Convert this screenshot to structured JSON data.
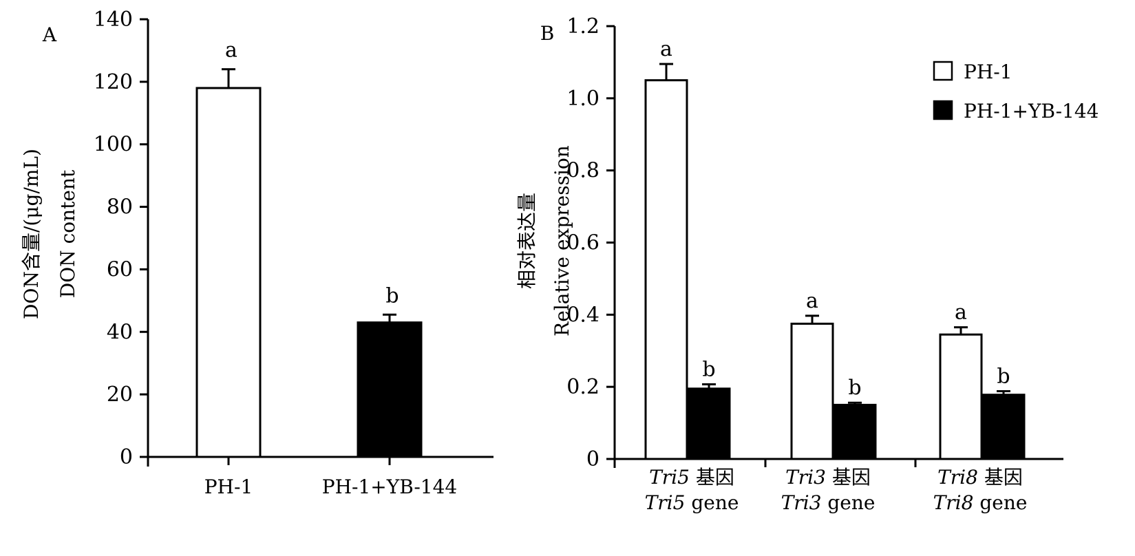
{
  "chart_data": [
    {
      "type": "bar",
      "panel_label": "A",
      "ylabel_zh": "DON含量/(μg/mL)",
      "ylabel_en": "DON content",
      "ylim": [
        0,
        140
      ],
      "yticks": [
        0,
        20,
        40,
        60,
        80,
        100,
        120,
        140
      ],
      "categories": [
        "PH-1",
        "PH-1+YB-144"
      ],
      "values": [
        118,
        43
      ],
      "errors": [
        6,
        2.5
      ],
      "significance": [
        "a",
        "b"
      ],
      "colors": [
        "#ffffff",
        "#000000"
      ]
    },
    {
      "type": "bar",
      "panel_label": "B",
      "ylabel_zh": "相对表达量",
      "ylabel_en": "Relative expression",
      "ylim": [
        0,
        1.2
      ],
      "yticks": [
        "0",
        "0.2",
        "0.4",
        "0.6",
        "0.8",
        "1.0",
        "1.2"
      ],
      "groups": [
        {
          "gene": "Tri5",
          "zh": "基因",
          "en": "gene"
        },
        {
          "gene": "Tri3",
          "zh": "基因",
          "en": "gene"
        },
        {
          "gene": "Tri8",
          "zh": "基因",
          "en": "gene"
        }
      ],
      "series": [
        {
          "name": "PH-1",
          "color": "#ffffff",
          "values": [
            1.05,
            0.375,
            0.345
          ],
          "errors": [
            0.045,
            0.022,
            0.02
          ],
          "significance": [
            "a",
            "a",
            "a"
          ]
        },
        {
          "name": "PH-1+YB-144",
          "color": "#000000",
          "values": [
            0.195,
            0.15,
            0.178
          ],
          "errors": [
            0.012,
            0.006,
            0.01
          ],
          "significance": [
            "b",
            "b",
            "b"
          ]
        }
      ],
      "legend_position": "top-right"
    }
  ]
}
